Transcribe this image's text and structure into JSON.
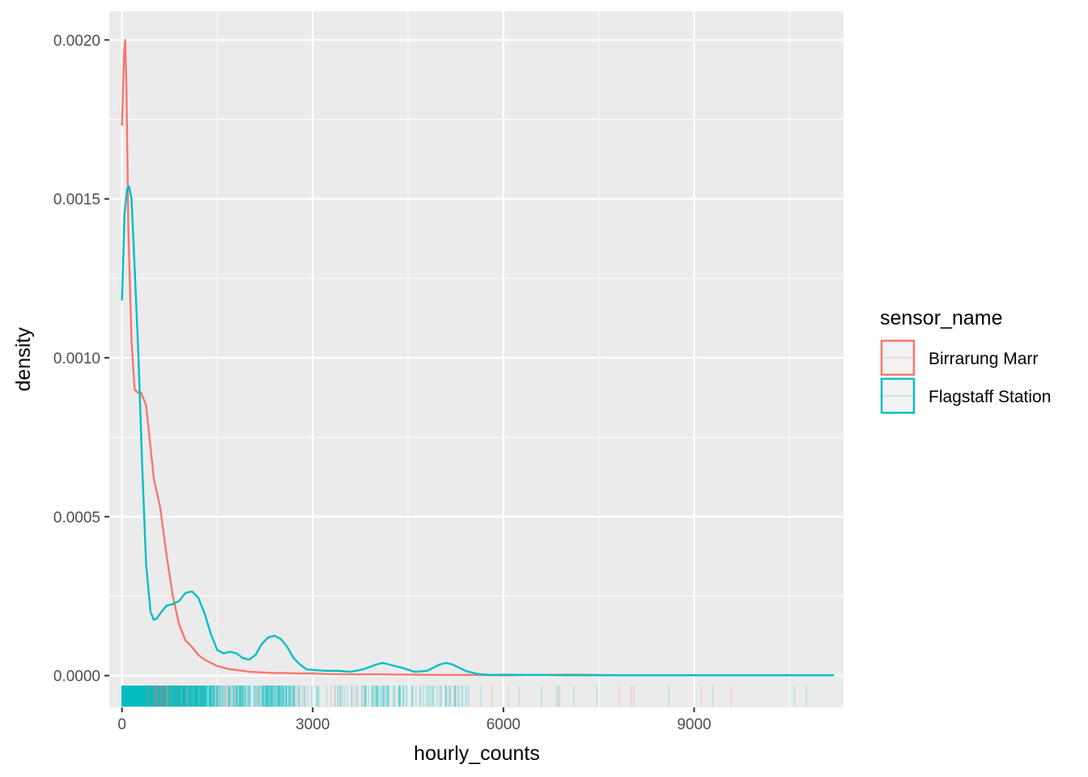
{
  "chart_data": {
    "type": "density",
    "xlabel": "hourly_counts",
    "ylabel": "density",
    "xlim": [
      -200,
      11350
    ],
    "ylim": [
      -0.0001,
      0.00209
    ],
    "x_ticks": [
      0,
      3000,
      6000,
      9000
    ],
    "x_tick_labels": [
      "0",
      "3000",
      "6000",
      "9000"
    ],
    "y_ticks": [
      0,
      0.0005,
      0.001,
      0.0015,
      0.002
    ],
    "y_tick_labels": [
      "0.0000",
      "0.0005",
      "0.0010",
      "0.0015",
      "0.0020"
    ],
    "grid": true,
    "legend": {
      "title": "sensor_name",
      "position": "right",
      "entries": [
        "Birrarung Marr",
        "Flagstaff Station"
      ]
    },
    "series": [
      {
        "name": "Birrarung Marr",
        "color": "#F8766D",
        "x": [
          0,
          30,
          50,
          70,
          100,
          150,
          200,
          250,
          300,
          380,
          500,
          600,
          700,
          800,
          900,
          1000,
          1100,
          1200,
          1300,
          1400,
          1500,
          1600,
          1700,
          1800,
          1900,
          2000,
          2200,
          2400,
          2600,
          2800,
          3000,
          3200,
          3500,
          4000,
          4500,
          5000,
          5500,
          6000,
          7000,
          8000,
          9000,
          10000,
          11000,
          11200
        ],
        "y": [
          0.00173,
          0.00195,
          0.002,
          0.00185,
          0.0014,
          0.00105,
          0.0009,
          0.00089,
          0.00089,
          0.00085,
          0.00062,
          0.00053,
          0.00038,
          0.00025,
          0.00016,
          0.00011,
          9e-05,
          6.5e-05,
          5e-05,
          4e-05,
          3e-05,
          2.5e-05,
          2e-05,
          1.8e-05,
          1.5e-05,
          1.2e-05,
          1e-05,
          8e-06,
          8e-06,
          7e-06,
          7e-06,
          5e-06,
          4e-06,
          4e-06,
          3e-06,
          2e-06,
          2e-06,
          1e-06,
          3e-06,
          1e-06,
          1e-06,
          1e-06,
          1e-06,
          1e-06
        ]
      },
      {
        "name": "Flagstaff Station",
        "color": "#00BFC4",
        "x": [
          0,
          40,
          80,
          110,
          150,
          200,
          260,
          320,
          380,
          450,
          500,
          550,
          600,
          700,
          800,
          900,
          1000,
          1100,
          1200,
          1300,
          1400,
          1500,
          1600,
          1700,
          1800,
          1900,
          2000,
          2100,
          2200,
          2300,
          2400,
          2500,
          2600,
          2700,
          2800,
          2900,
          3000,
          3200,
          3400,
          3600,
          3800,
          4000,
          4100,
          4200,
          4400,
          4600,
          4800,
          5000,
          5100,
          5200,
          5400,
          5600,
          5800,
          6000,
          6500,
          7000,
          8000,
          9000,
          10000,
          11000,
          11200
        ],
        "y": [
          0.00118,
          0.00145,
          0.00153,
          0.00154,
          0.0015,
          0.00128,
          0.001,
          0.00065,
          0.00035,
          0.0002,
          0.000175,
          0.00018,
          0.000195,
          0.00022,
          0.000225,
          0.000235,
          0.00026,
          0.000265,
          0.000245,
          0.000195,
          0.00013,
          8e-05,
          7e-05,
          7.5e-05,
          7e-05,
          5.5e-05,
          5e-05,
          6.5e-05,
          0.0001,
          0.00012,
          0.000125,
          0.000115,
          9e-05,
          5.5e-05,
          3.5e-05,
          2e-05,
          1.8e-05,
          1.5e-05,
          1.5e-05,
          1.2e-05,
          2e-05,
          3.5e-05,
          4e-05,
          3.5e-05,
          2.5e-05,
          1.2e-05,
          1.5e-05,
          3.5e-05,
          4e-05,
          3.5e-05,
          1.5e-05,
          5e-06,
          2e-06,
          3e-06,
          2e-06,
          1e-06,
          1e-06,
          1e-06,
          1e-06,
          1e-06,
          1e-06
        ]
      }
    ]
  }
}
